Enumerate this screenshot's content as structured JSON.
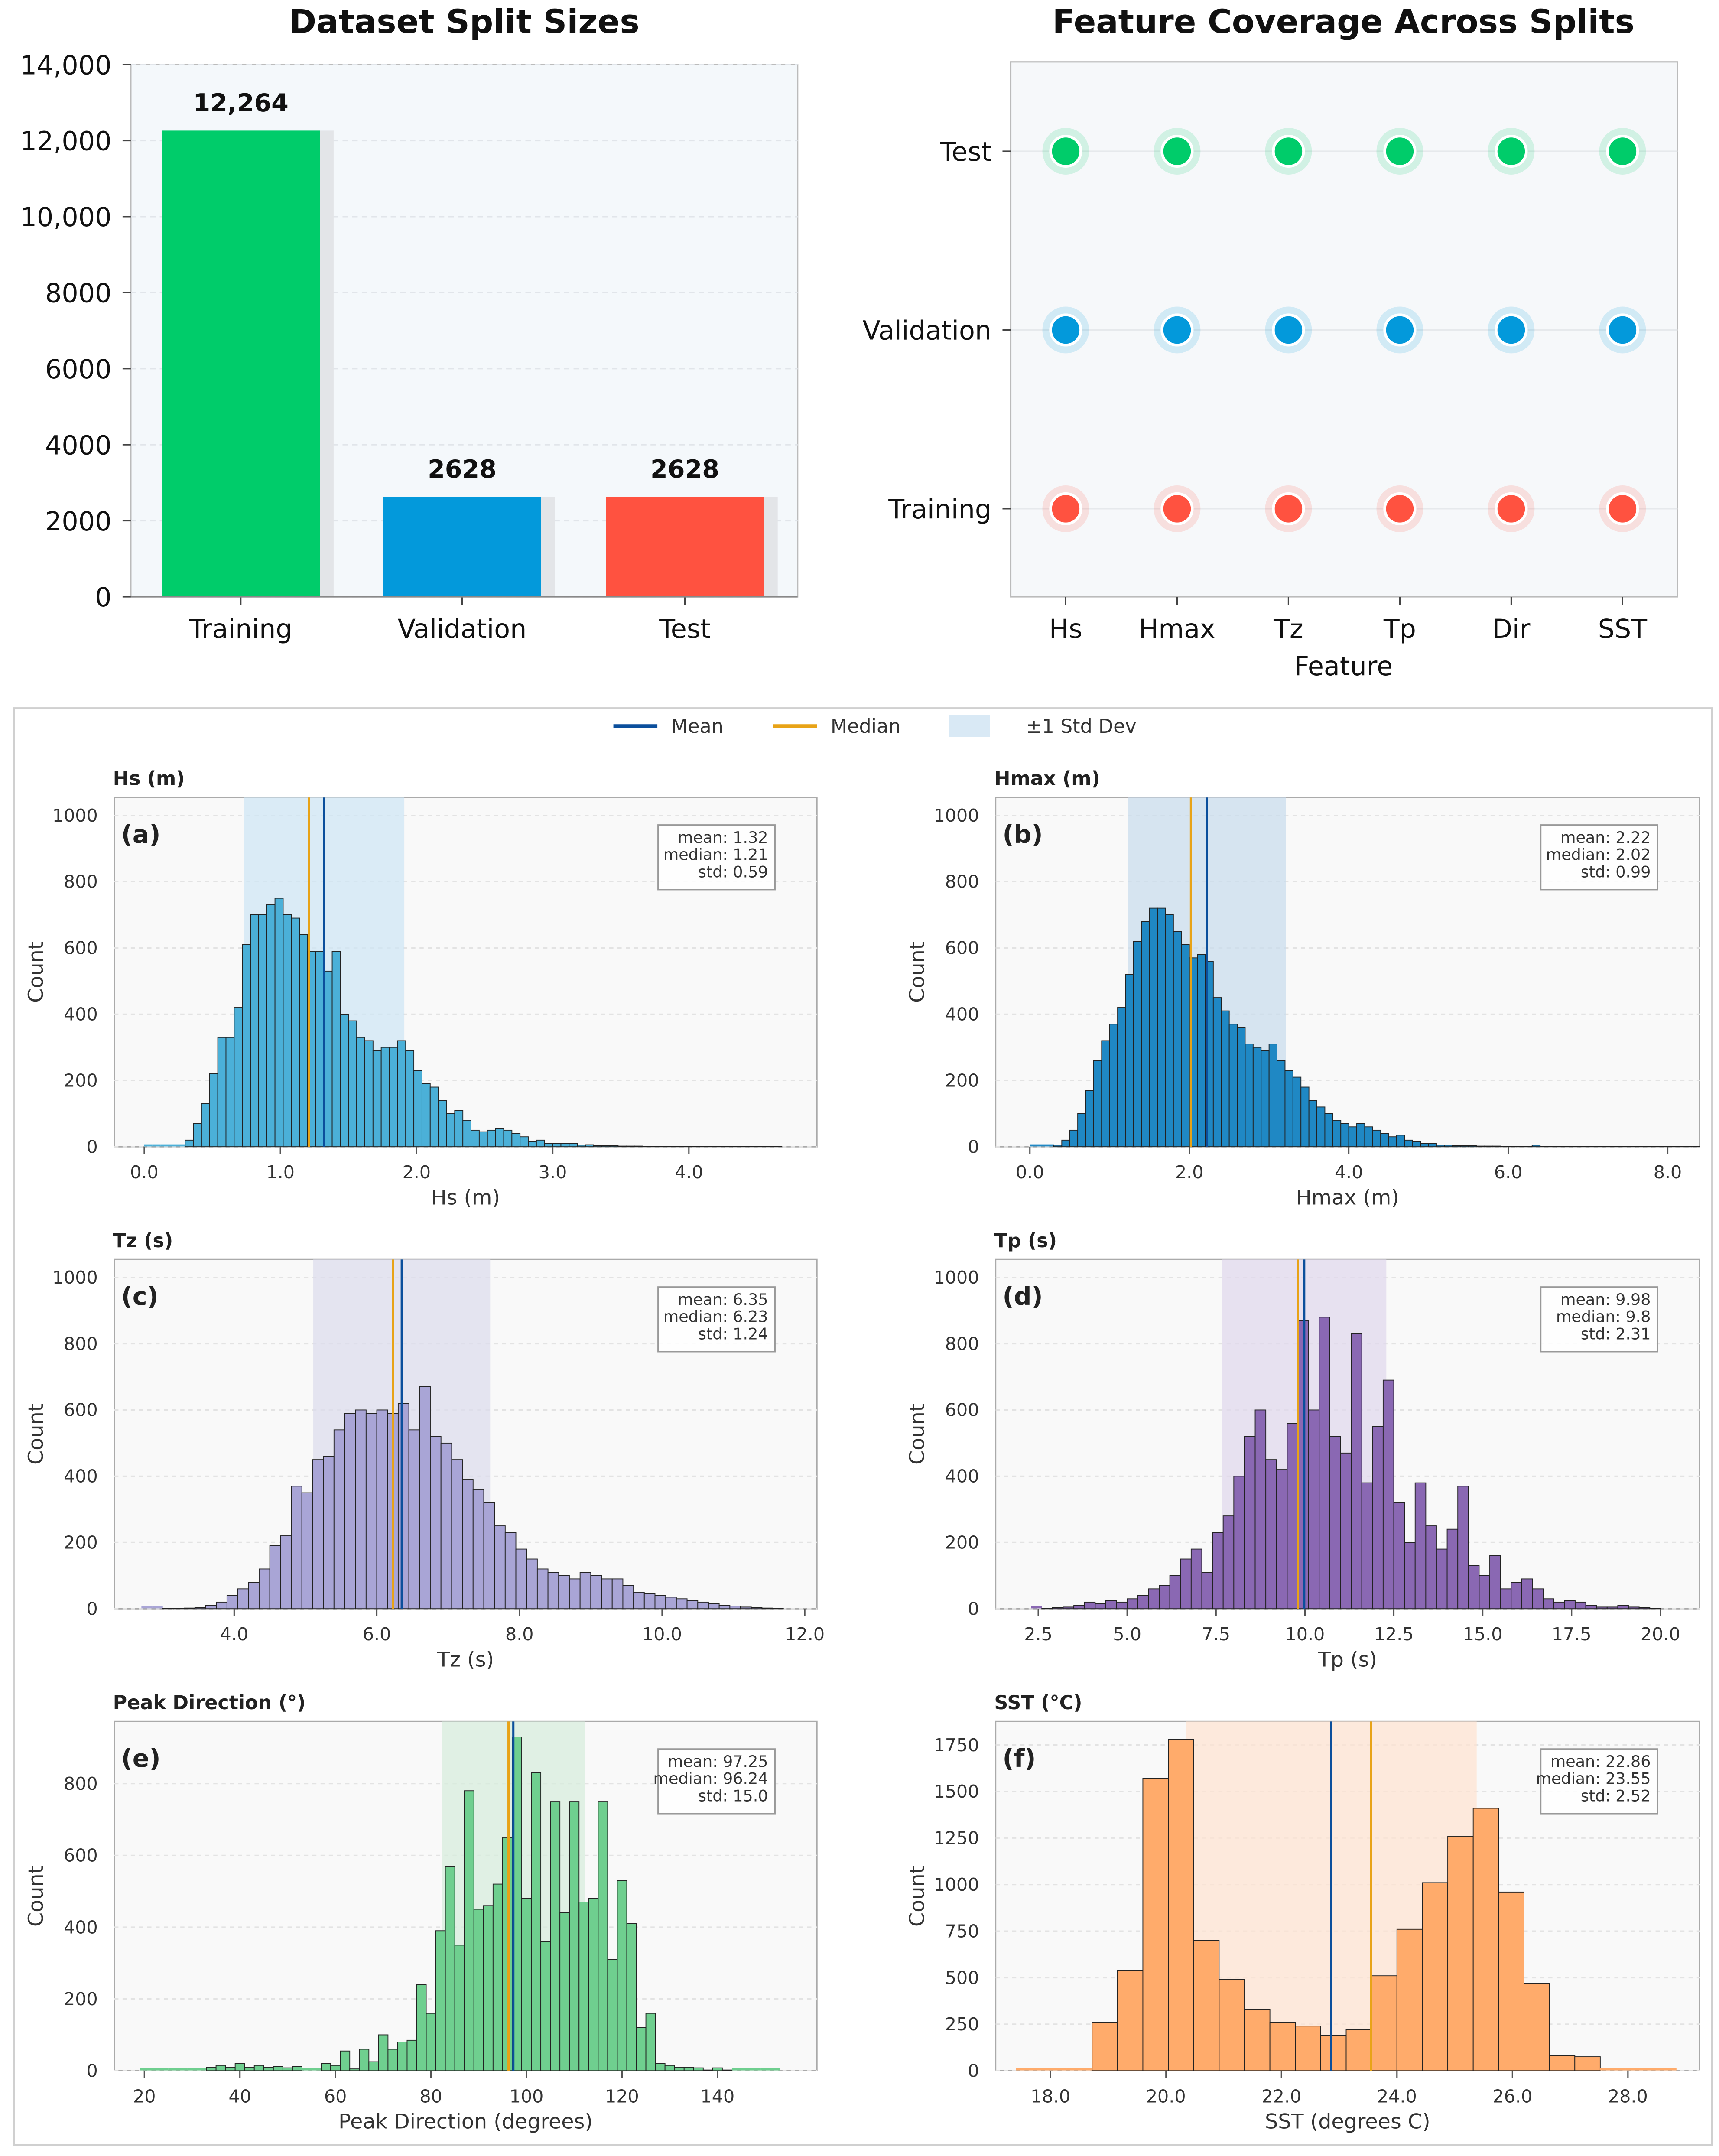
{
  "chart_data": [
    {
      "type": "bar",
      "title": "Dataset Split Sizes",
      "categories": [
        "Training",
        "Validation",
        "Test"
      ],
      "values": [
        12264,
        2628,
        2628
      ],
      "value_labels": [
        "12,264",
        "2628",
        "2628"
      ],
      "colors": [
        "#00cc6a",
        "#0399db",
        "#ff5240"
      ],
      "ylim": [
        0,
        14000
      ],
      "yticks": [
        0,
        2000,
        4000,
        6000,
        8000,
        10000,
        12000,
        14000
      ],
      "ytick_labels": [
        "0",
        "2000",
        "4000",
        "6000",
        "8000",
        "10,000",
        "12,000",
        "14,000"
      ],
      "xlabel": "",
      "ylabel": ""
    },
    {
      "type": "scatter",
      "title": "Feature Coverage Across Splits",
      "xlabel": "Feature",
      "features": [
        "Hs",
        "Hmax",
        "Tz",
        "Tp",
        "Dir",
        "SST"
      ],
      "splits": [
        {
          "name": "Test",
          "color": "#00cc6a"
        },
        {
          "name": "Validation",
          "color": "#0399db"
        },
        {
          "name": "Training",
          "color": "#ff5240"
        }
      ]
    },
    {
      "type": "bar",
      "subtype": "histogram",
      "legend": {
        "placement": "top-center",
        "entries": [
          "Mean",
          "Median",
          "±1 Std Dev"
        ],
        "colors": [
          "#0b4f9c",
          "#e8a317",
          "#cfe4f3"
        ]
      },
      "panels": [
        {
          "title": "Hs (m)",
          "label": "(a)",
          "xlabel": "Hs (m)",
          "ylabel": "Count",
          "color": "#4bb0d8",
          "band": "#cfe6f4",
          "xlim": [
            -0.22,
            4.94
          ],
          "ylim": [
            0,
            1054
          ],
          "xticks": [
            0,
            1,
            2,
            3,
            4
          ],
          "xtick_labels": [
            "0.0",
            "1.0",
            "2.0",
            "3.0",
            "4.0"
          ],
          "yticks": [
            0,
            200,
            400,
            600,
            800,
            1000
          ],
          "ytick_labels": [
            "0",
            "200",
            "400",
            "600",
            "800",
            "1000"
          ],
          "mean": 1.32,
          "median": 1.21,
          "std": 0.59,
          "stats": [
            "mean: 1.32",
            "median: 1.21",
            "std: 0.59"
          ],
          "bin_start": 0.0,
          "bin_width": 0.06,
          "counts": [
            0,
            0,
            0,
            0,
            0,
            20,
            70,
            130,
            220,
            330,
            330,
            420,
            610,
            700,
            700,
            730,
            750,
            700,
            690,
            640,
            590,
            590,
            530,
            590,
            400,
            380,
            330,
            320,
            290,
            300,
            300,
            320,
            290,
            230,
            190,
            180,
            140,
            100,
            110,
            80,
            50,
            45,
            50,
            55,
            50,
            40,
            30,
            15,
            20,
            10,
            10,
            10,
            10,
            5,
            6,
            4,
            3,
            3,
            2,
            2,
            2,
            1,
            1,
            1,
            1,
            1,
            1,
            1,
            1,
            1,
            1,
            1,
            1,
            1,
            1,
            1,
            1,
            1
          ]
        },
        {
          "title": "Hmax (m)",
          "label": "(b)",
          "xlabel": "Hmax (m)",
          "ylabel": "Count",
          "color": "#1f88c4",
          "band": "#c9dcec",
          "xlim": [
            -0.43,
            8.4
          ],
          "ylim": [
            0,
            1054
          ],
          "xticks": [
            0,
            2,
            4,
            6,
            8
          ],
          "xtick_labels": [
            "0.0",
            "2.0",
            "4.0",
            "6.0",
            "8.0"
          ],
          "yticks": [
            0,
            200,
            400,
            600,
            800,
            1000
          ],
          "ytick_labels": [
            "0",
            "200",
            "400",
            "600",
            "800",
            "1000"
          ],
          "mean": 2.22,
          "median": 2.02,
          "std": 0.99,
          "stats": [
            "mean: 2.22",
            "median: 2.02",
            "std: 0.99"
          ],
          "bin_start": 0.0,
          "bin_width": 0.1,
          "counts": [
            0,
            0,
            0,
            5,
            20,
            50,
            100,
            170,
            260,
            320,
            370,
            420,
            520,
            620,
            680,
            720,
            720,
            700,
            650,
            610,
            570,
            580,
            560,
            450,
            410,
            370,
            360,
            310,
            300,
            290,
            310,
            260,
            230,
            210,
            180,
            140,
            120,
            100,
            80,
            70,
            60,
            70,
            60,
            50,
            40,
            30,
            35,
            20,
            15,
            10,
            10,
            5,
            5,
            4,
            3,
            3,
            2,
            2,
            2,
            1,
            1,
            1,
            1,
            5,
            1,
            1,
            1,
            1,
            1,
            1,
            1,
            1,
            1,
            1,
            1,
            1,
            1,
            1,
            1,
            1,
            1,
            1,
            1,
            1,
            1
          ]
        },
        {
          "title": "Tz (s)",
          "label": "(c)",
          "xlabel": "Tz (s)",
          "ylabel": "Count",
          "color": "#a9a5d6",
          "band": "#dcdcec",
          "xlim": [
            2.32,
            12.17
          ],
          "ylim": [
            0,
            1054
          ],
          "xticks": [
            4,
            6,
            8,
            10,
            12
          ],
          "xtick_labels": [
            "4.0",
            "6.0",
            "8.0",
            "10.0",
            "12.0"
          ],
          "yticks": [
            0,
            200,
            400,
            600,
            800,
            1000
          ],
          "ytick_labels": [
            "0",
            "200",
            "400",
            "600",
            "800",
            "1000"
          ],
          "mean": 6.35,
          "median": 6.23,
          "std": 1.24,
          "stats": [
            "mean: 6.35",
            "median: 6.23",
            "std: 1.24"
          ],
          "bin_start": 2.7,
          "bin_width": 0.15,
          "counts": [
            0,
            0,
            1,
            1,
            2,
            3,
            10,
            20,
            40,
            60,
            80,
            120,
            190,
            220,
            370,
            350,
            450,
            460,
            540,
            590,
            600,
            590,
            600,
            590,
            620,
            540,
            670,
            520,
            500,
            450,
            390,
            360,
            320,
            250,
            230,
            180,
            150,
            120,
            110,
            100,
            90,
            110,
            100,
            90,
            90,
            70,
            50,
            45,
            40,
            35,
            30,
            25,
            20,
            15,
            10,
            8,
            5,
            3,
            2,
            1
          ]
        },
        {
          "title": "Tp (s)",
          "label": "(d)",
          "xlabel": "Tp (s)",
          "ylabel": "Count",
          "color": "#8a68b3",
          "band": "#e0d8ec",
          "xlim": [
            1.3,
            21.1
          ],
          "ylim": [
            0,
            1054
          ],
          "xticks": [
            2.5,
            5,
            7.5,
            10,
            12.5,
            15,
            17.5,
            20
          ],
          "xtick_labels": [
            "2.5",
            "5.0",
            "7.5",
            "10.0",
            "12.5",
            "15.0",
            "17.5",
            "20.0"
          ],
          "yticks": [
            0,
            200,
            400,
            600,
            800,
            1000
          ],
          "ytick_labels": [
            "0",
            "200",
            "400",
            "600",
            "800",
            "1000"
          ],
          "mean": 9.98,
          "median": 9.8,
          "std": 2.31,
          "stats": [
            "mean: 9.98",
            "median: 9.8",
            "std: 2.31"
          ],
          "bin_start": 2.3,
          "bin_width": 0.3,
          "counts": [
            0,
            1,
            3,
            5,
            10,
            20,
            15,
            25,
            20,
            30,
            40,
            60,
            70,
            100,
            150,
            180,
            110,
            230,
            280,
            400,
            520,
            600,
            450,
            420,
            560,
            870,
            600,
            880,
            520,
            470,
            830,
            380,
            550,
            690,
            320,
            200,
            380,
            250,
            180,
            240,
            370,
            130,
            100,
            160,
            60,
            80,
            90,
            60,
            30,
            20,
            25,
            20,
            10,
            5,
            5,
            10,
            5,
            3,
            1
          ]
        },
        {
          "title": "Peak Direction (°)",
          "label": "(e)",
          "xlabel": "Peak Direction (degrees)",
          "ylabel": "Count",
          "color": "#6fcf8f",
          "band": "#d7ecdc",
          "xlim": [
            13.7,
            160.8
          ],
          "ylim": [
            0,
            973
          ],
          "xticks": [
            20,
            40,
            60,
            80,
            100,
            120,
            140
          ],
          "xtick_labels": [
            "20",
            "40",
            "60",
            "80",
            "100",
            "120",
            "140"
          ],
          "yticks": [
            0,
            200,
            400,
            600,
            800
          ],
          "ytick_labels": [
            "0",
            "200",
            "400",
            "600",
            "800"
          ],
          "mean": 97.25,
          "median": 96.24,
          "std": 15.0,
          "stats": [
            "mean: 97.25",
            "median: 96.24",
            "std: 15.0"
          ],
          "bin_start": 19,
          "bin_width": 2,
          "counts": [
            0,
            0,
            0,
            0,
            0,
            0,
            0,
            10,
            15,
            10,
            20,
            10,
            15,
            10,
            12,
            8,
            12,
            0,
            0,
            20,
            15,
            55,
            5,
            60,
            25,
            100,
            60,
            80,
            85,
            240,
            160,
            390,
            570,
            350,
            780,
            450,
            460,
            520,
            650,
            930,
            480,
            830,
            360,
            750,
            440,
            750,
            470,
            480,
            750,
            310,
            530,
            410,
            120,
            160,
            20,
            15,
            10,
            10,
            8,
            2,
            8,
            2,
            0,
            0,
            0,
            0,
            0
          ]
        },
        {
          "title": "SST (°C)",
          "label": "(f)",
          "xlabel": "SST (degrees C)",
          "ylabel": "Count",
          "color": "#ffab6b",
          "band": "#fde3d2",
          "xlim": [
            17.05,
            29.24
          ],
          "ylim": [
            0,
            1876
          ],
          "xticks": [
            18,
            20,
            22,
            24,
            26,
            28
          ],
          "xtick_labels": [
            "18.0",
            "20.0",
            "22.0",
            "24.0",
            "26.0",
            "28.0"
          ],
          "yticks": [
            0,
            250,
            500,
            750,
            1000,
            1250,
            1500,
            1750
          ],
          "ytick_labels": [
            "0",
            "250",
            "500",
            "750",
            "1000",
            "1250",
            "1500",
            "1750"
          ],
          "mean": 22.86,
          "median": 23.55,
          "std": 2.52,
          "stats": [
            "mean: 22.86",
            "median: 23.55",
            "std: 2.52"
          ],
          "bin_start": 17.4,
          "bin_width": 0.44,
          "counts": [
            0,
            0,
            0,
            260,
            540,
            1570,
            1780,
            700,
            490,
            330,
            260,
            240,
            190,
            220,
            510,
            760,
            1010,
            1260,
            1410,
            960,
            470,
            80,
            75,
            0,
            0,
            0
          ]
        }
      ]
    }
  ]
}
